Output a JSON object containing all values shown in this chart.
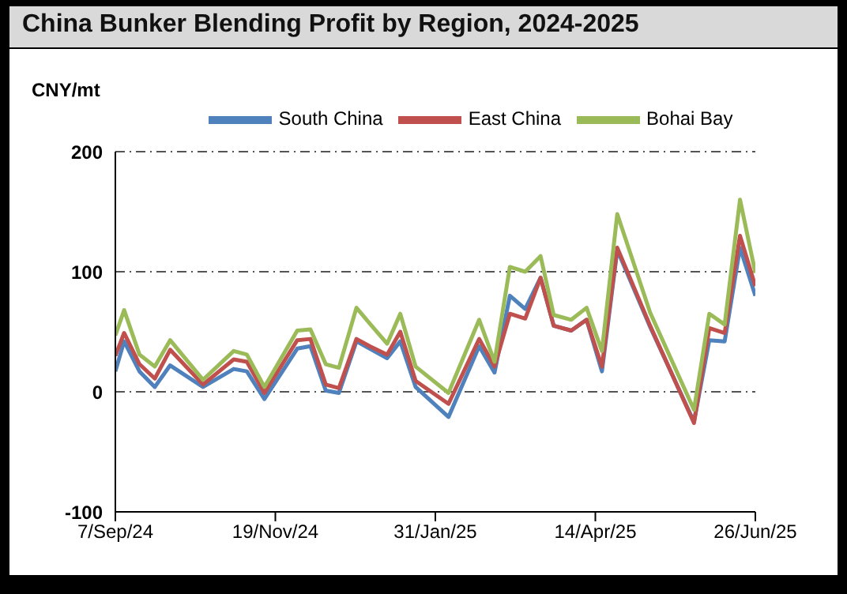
{
  "chart_data": {
    "type": "line",
    "title": "China Bunker Blending Profit by Region, 2024-2025",
    "ylabel": "CNY/mt",
    "x": [
      "2024-09-07",
      "2024-09-11",
      "2024-09-18",
      "2024-09-25",
      "2024-10-02",
      "2024-10-17",
      "2024-10-31",
      "2024-11-06",
      "2024-11-14",
      "2024-11-29",
      "2024-12-05",
      "2024-12-12",
      "2024-12-18",
      "2024-12-26",
      "2025-01-01",
      "2025-01-09",
      "2025-01-15",
      "2025-01-22",
      "2025-02-06",
      "2025-02-20",
      "2025-02-27",
      "2025-03-06",
      "2025-03-13",
      "2025-03-20",
      "2025-03-26",
      "2025-04-03",
      "2025-04-10",
      "2025-04-17",
      "2025-04-24",
      "2025-05-09",
      "2025-05-29",
      "2025-06-05",
      "2025-06-12",
      "2025-06-19",
      "2025-06-26"
    ],
    "series": [
      {
        "name": "South China",
        "color": "#4f81bd",
        "values": [
          17,
          42,
          17,
          4,
          22,
          4,
          19,
          17,
          -6,
          36,
          38,
          1,
          -1,
          42,
          36,
          28,
          42,
          4,
          -21,
          38,
          16,
          80,
          69,
          95,
          55,
          51,
          60,
          17,
          118,
          54,
          -25,
          43,
          42,
          120,
          80
        ]
      },
      {
        "name": "East China",
        "color": "#c0504d",
        "values": [
          30,
          49,
          23,
          11,
          35,
          6,
          27,
          25,
          -1,
          43,
          44,
          6,
          3,
          44,
          38,
          31,
          50,
          9,
          -10,
          44,
          21,
          65,
          61,
          95,
          55,
          51,
          60,
          21,
          120,
          55,
          -26,
          53,
          49,
          130,
          88
        ]
      },
      {
        "name": "Bohai Bay",
        "color": "#9bbb59",
        "values": [
          47,
          68,
          31,
          21,
          43,
          10,
          34,
          31,
          4,
          51,
          52,
          23,
          20,
          70,
          57,
          40,
          65,
          21,
          -1,
          60,
          25,
          104,
          100,
          113,
          64,
          60,
          70,
          34,
          148,
          66,
          -15,
          65,
          56,
          160,
          99
        ]
      }
    ],
    "xlim": [
      "2024-09-07",
      "2025-06-26"
    ],
    "xticks": [
      {
        "value": "2024-09-07",
        "label": "7/Sep/24"
      },
      {
        "value": "2024-11-19",
        "label": "19/Nov/24"
      },
      {
        "value": "2025-01-31",
        "label": "31/Jan/25"
      },
      {
        "value": "2025-04-14",
        "label": "14/Apr/25"
      },
      {
        "value": "2025-06-26",
        "label": "26/Jun/25"
      }
    ],
    "ylim": [
      -100,
      200
    ],
    "yticks": [
      -100,
      0,
      100,
      200
    ],
    "grid": "y",
    "legend": "top"
  }
}
